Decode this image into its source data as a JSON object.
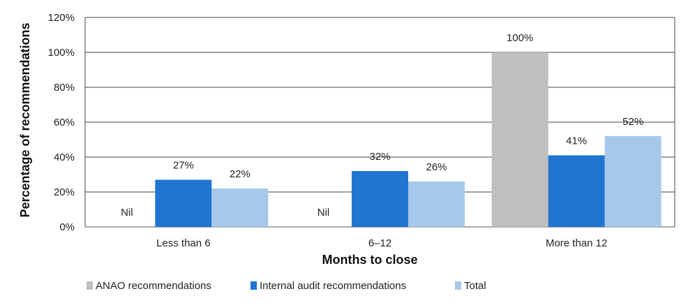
{
  "chart_data": {
    "type": "bar",
    "categories": [
      "Less than 6",
      "6–12",
      "More than 12"
    ],
    "series": [
      {
        "name": "ANAO recommendations",
        "values": [
          0,
          0,
          100
        ],
        "labels": [
          "Nil",
          "Nil",
          "100%"
        ],
        "color": "#bfbfbf"
      },
      {
        "name": "Internal audit recommendations",
        "values": [
          27,
          32,
          41
        ],
        "labels": [
          "27%",
          "32%",
          "41%"
        ],
        "color": "#1f75cf"
      },
      {
        "name": "Total",
        "values": [
          22,
          26,
          52
        ],
        "labels": [
          "22%",
          "26%",
          "52%"
        ],
        "color": "#a6c8ea"
      }
    ],
    "xlabel": "Months to close",
    "ylabel": "Percentage of recommendations",
    "ylim": [
      0,
      120
    ],
    "yticks": [
      "0%",
      "20%",
      "40%",
      "60%",
      "80%",
      "100%",
      "120%"
    ],
    "grid": true,
    "legend_position": "bottom-left"
  }
}
